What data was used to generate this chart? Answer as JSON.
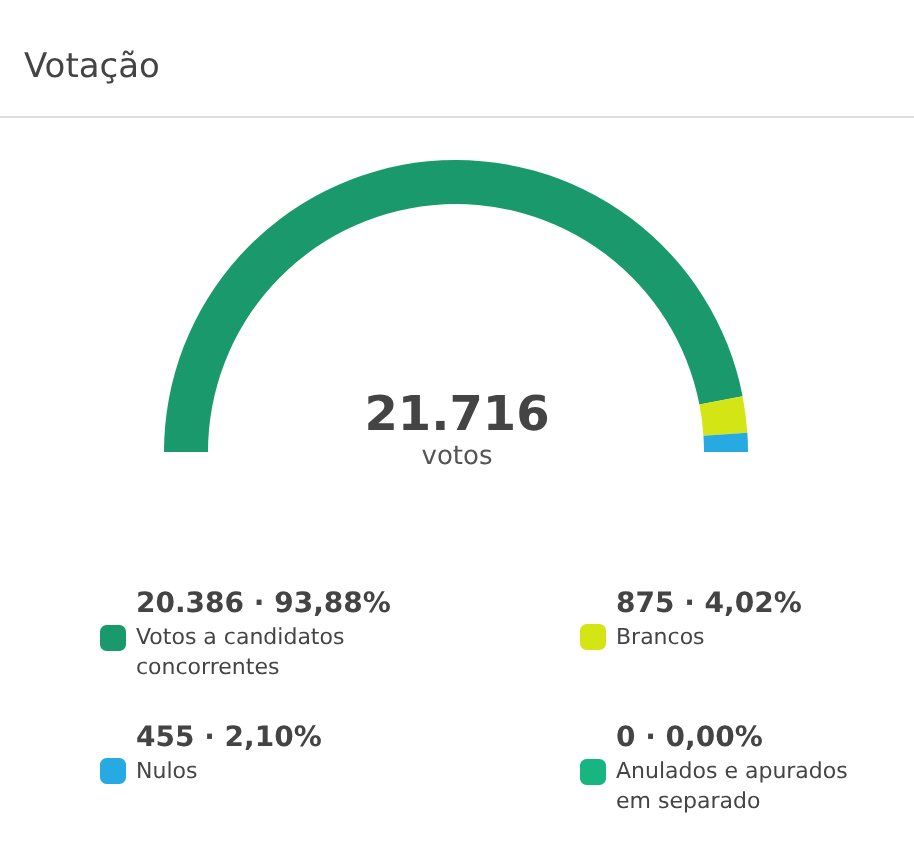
{
  "chart_data": {
    "type": "donut",
    "title": "Votação",
    "categories": [
      "Votos a candidatos\nconcorrentes",
      "Brancos",
      "Nulos",
      "Anulados e apurados\nem separado"
    ],
    "values": [
      20386,
      875,
      455,
      0
    ],
    "value_labels": [
      "20.386 · 93,88%",
      "875 · 4,02%",
      "455 · 2,10%",
      "0 · 0,00%"
    ],
    "colors": [
      "#1a9a6c",
      "#d4e516",
      "#27aae1",
      "#17b57f"
    ],
    "annotations": [
      "21.716",
      "votos"
    ],
    "legend": "bottom"
  }
}
